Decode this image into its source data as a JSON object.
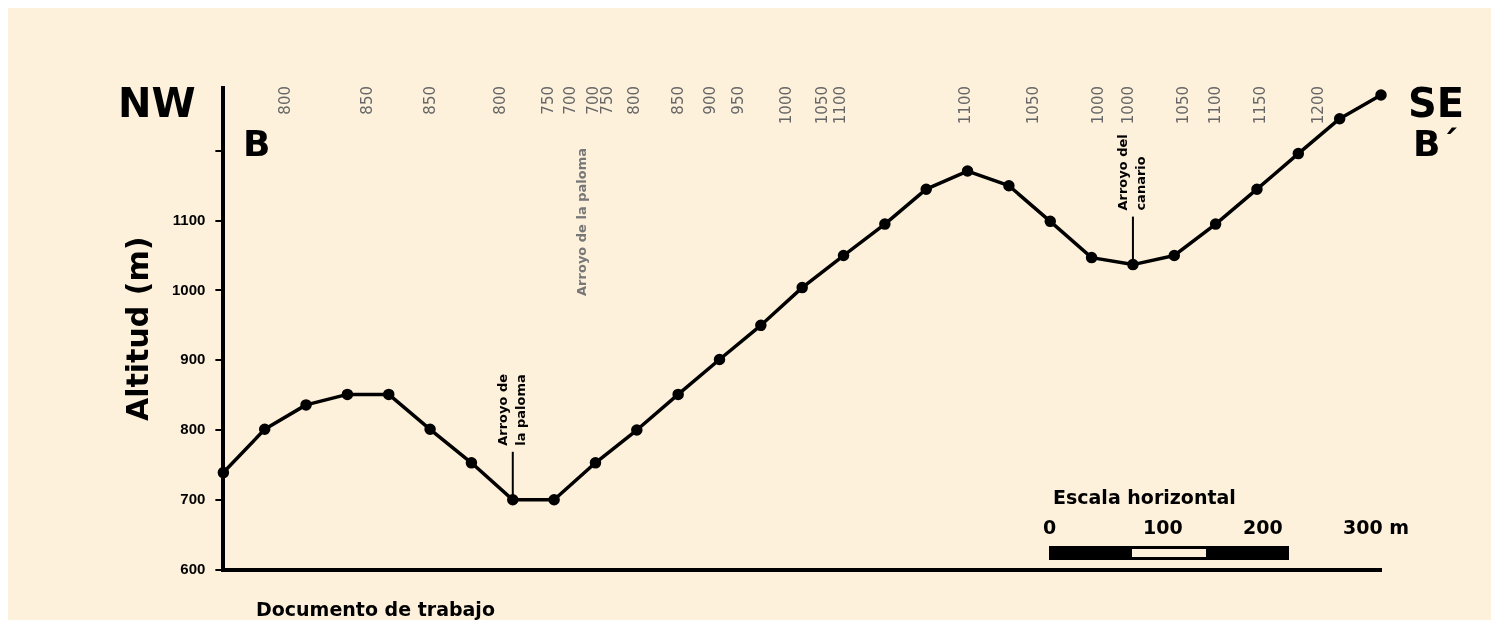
{
  "chart_data": {
    "type": "line",
    "ylabel": "Altitud (m)",
    "categories": [
      null,
      null,
      null,
      null,
      null,
      null,
      null,
      null,
      null,
      null,
      null,
      null,
      null,
      null,
      null,
      null,
      null,
      null,
      null,
      null,
      null,
      null,
      null,
      null,
      null,
      null,
      null,
      null,
      null
    ],
    "series": [
      {
        "color": "#000000",
        "values": [
          739,
          801,
          836,
          851,
          851,
          801,
          753,
          700,
          700,
          753,
          800,
          851,
          901,
          950,
          1004,
          1050,
          1095,
          1145,
          1171,
          1150,
          1099,
          1047,
          1037,
          1050,
          1095,
          1145,
          1196,
          1246,
          1280
        ]
      }
    ],
    "ylim": [
      600,
      1290
    ],
    "yticks": [
      600,
      700,
      800,
      900,
      1000,
      1100,
      {
        "value": 1200,
        "label": null
      }
    ],
    "grid": false,
    "legend": false,
    "marker": "circle",
    "line_style": "solid",
    "annotations": [
      {
        "text": "Arroyo de la paloma",
        "y": 700
      },
      {
        "text": "Arroyo del canario",
        "y": 1037
      },
      "0",
      "100",
      "200",
      "300 m",
      "Escala horizontal",
      "Documento de trabajo",
      "NW",
      "SE",
      "B",
      "B´",
      "Arroyo de la paloma",
      "800",
      "850",
      "850",
      "800",
      "750",
      "700",
      "700",
      "750",
      "800",
      "850",
      "900",
      "950",
      "1000",
      "1050",
      "1100",
      "1100",
      "1050",
      "1000",
      "1000",
      "1050",
      "1100",
      "1150",
      "1200"
    ]
  }
}
